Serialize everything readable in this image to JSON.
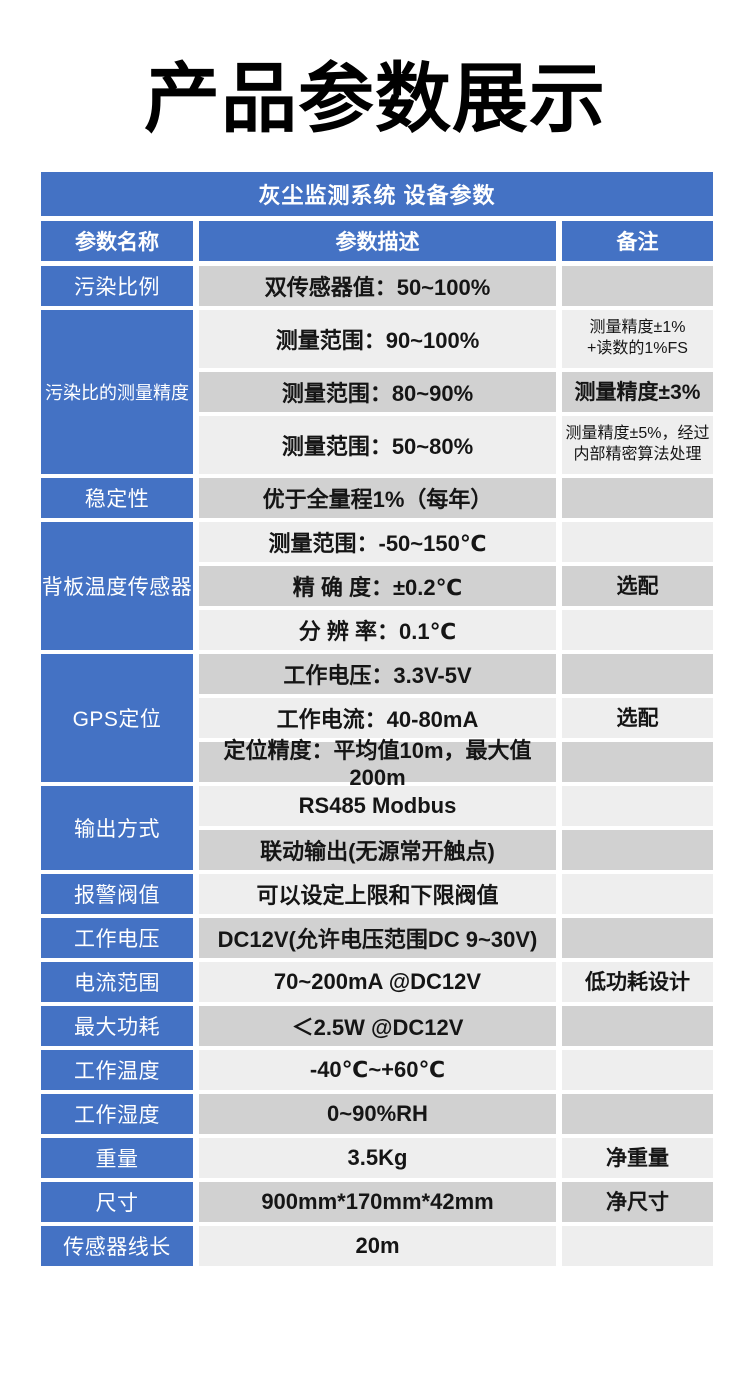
{
  "page_title": "产品参数展示",
  "colors": {
    "blue": "#4472c4",
    "row_dark": "#d1d1d1",
    "row_light": "#eeeeee"
  },
  "table": {
    "header": "灰尘监测系统 设备参数",
    "columns": {
      "name": "参数名称",
      "desc": "参数描述",
      "note": "备注"
    },
    "groups": [
      {
        "name": "污染比例",
        "rows": [
          {
            "desc": "双传感器值：50~100%",
            "note": ""
          }
        ]
      },
      {
        "name": "污染比的测量精度",
        "rows": [
          {
            "desc": "测量范围：90~100%",
            "note": "测量精度±1%\n+读数的1%FS"
          },
          {
            "desc": "测量范围：80~90%",
            "note": "测量精度±3%"
          },
          {
            "desc": "测量范围：50~80%",
            "note": "测量精度±5%，经过\n内部精密算法处理"
          }
        ]
      },
      {
        "name": "稳定性",
        "rows": [
          {
            "desc": "优于全量程1%（每年）",
            "note": ""
          }
        ]
      },
      {
        "name": "背板温度传感器",
        "rows": [
          {
            "desc": "测量范围：-50~150℃",
            "note": ""
          },
          {
            "desc": "精 确 度：±0.2℃",
            "note": "选配"
          },
          {
            "desc": "分 辨 率：0.1℃",
            "note": ""
          }
        ]
      },
      {
        "name": "GPS定位",
        "rows": [
          {
            "desc": "工作电压：3.3V-5V",
            "note": ""
          },
          {
            "desc": "工作电流：40-80mA",
            "note": "选配"
          },
          {
            "desc": "定位精度：平均值10m，最大值200m",
            "note": ""
          }
        ]
      },
      {
        "name": "输出方式",
        "rows": [
          {
            "desc": "RS485 Modbus",
            "note": ""
          },
          {
            "desc": "联动输出(无源常开触点)",
            "note": ""
          }
        ]
      },
      {
        "name": "报警阀值",
        "rows": [
          {
            "desc": "可以设定上限和下限阀值",
            "note": ""
          }
        ]
      },
      {
        "name": "工作电压",
        "rows": [
          {
            "desc": "DC12V(允许电压范围DC 9~30V)",
            "note": ""
          }
        ]
      },
      {
        "name": "电流范围",
        "rows": [
          {
            "desc": "70~200mA @DC12V",
            "note": "低功耗设计"
          }
        ]
      },
      {
        "name": "最大功耗",
        "rows": [
          {
            "desc": "＜2.5W @DC12V",
            "note": ""
          }
        ]
      },
      {
        "name": "工作温度",
        "rows": [
          {
            "desc": "-40℃~+60℃",
            "note": ""
          }
        ]
      },
      {
        "name": "工作湿度",
        "rows": [
          {
            "desc": "0~90%RH",
            "note": ""
          }
        ]
      },
      {
        "name": "重量",
        "rows": [
          {
            "desc": "3.5Kg",
            "note": "净重量"
          }
        ]
      },
      {
        "name": "尺寸",
        "rows": [
          {
            "desc": "900mm*170mm*42mm",
            "note": "净尺寸"
          }
        ]
      },
      {
        "name": "传感器线长",
        "rows": [
          {
            "desc": "20m",
            "note": ""
          }
        ]
      }
    ]
  }
}
